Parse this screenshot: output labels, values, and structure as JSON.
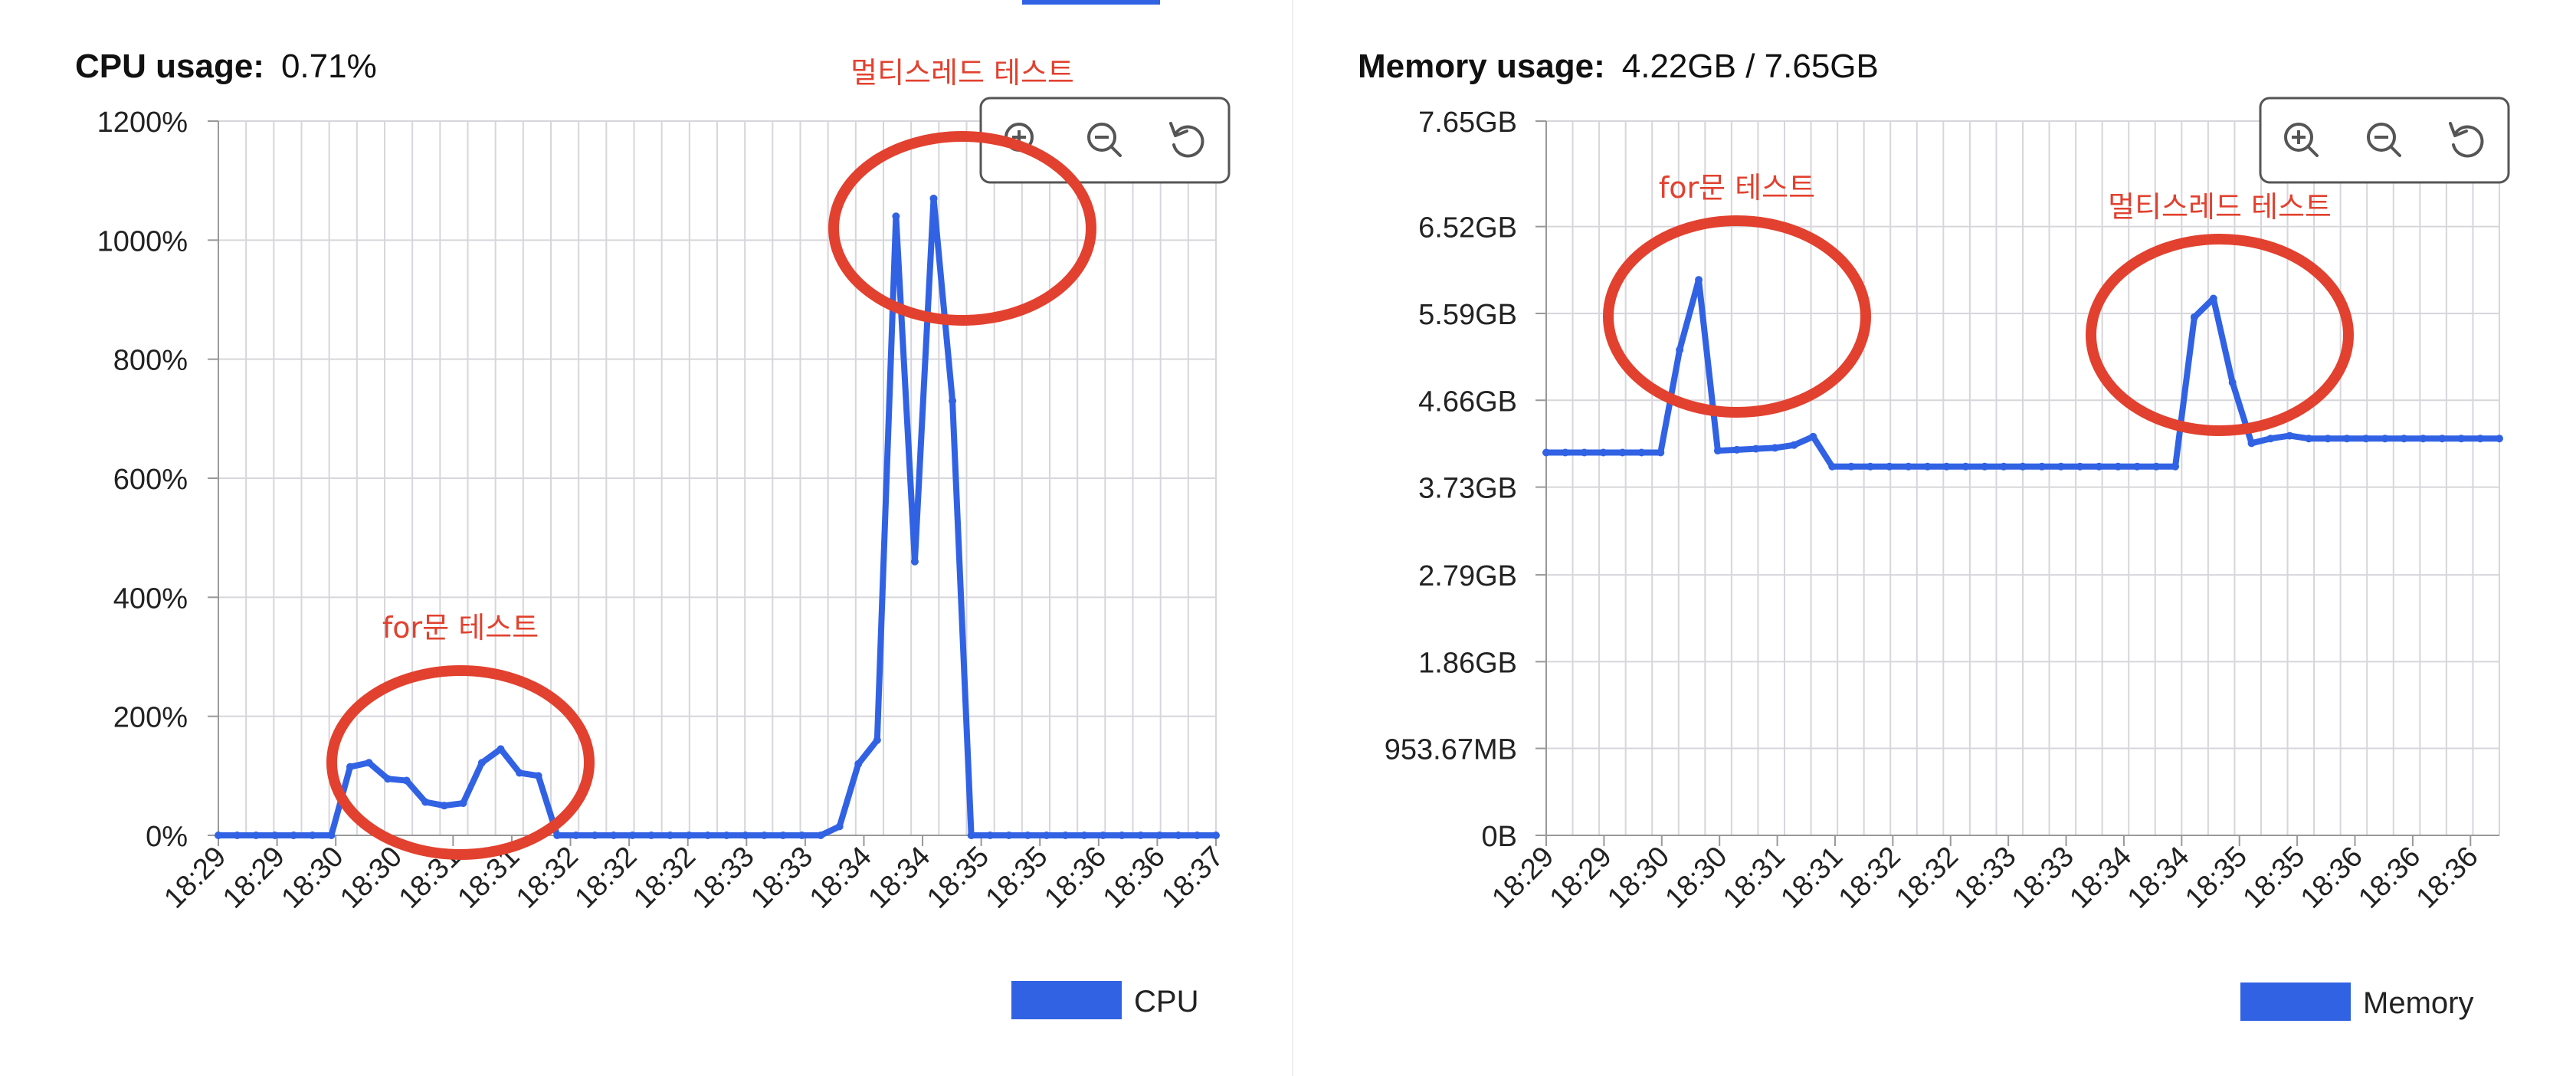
{
  "panels": [
    {
      "title_label": "CPU usage:",
      "title_value": "0.71%",
      "toolbar": [
        "zoom-in-icon",
        "zoom-out-icon",
        "reset-icon"
      ],
      "legend_label": "CPU",
      "annotations": [
        "for문 테스트",
        "멀티스레드 테스트"
      ]
    },
    {
      "title_label": "Memory usage:",
      "title_value": "4.22GB / 7.65GB",
      "toolbar": [
        "zoom-in-icon",
        "zoom-out-icon",
        "reset-icon"
      ],
      "legend_label": "Memory",
      "annotations": [
        "for문 테스트",
        "멀티스레드 테스트"
      ]
    }
  ],
  "colors": {
    "series": "#3262e4",
    "annotation": "#e2412f",
    "grid": "#d6d6db"
  },
  "chart_data": [
    {
      "type": "line",
      "series": [
        {
          "name": "CPU",
          "values": [
            0,
            0,
            0,
            0,
            0,
            0,
            0,
            115,
            122,
            95,
            92,
            56,
            50,
            54,
            122,
            145,
            105,
            100,
            0,
            0,
            0,
            0,
            0,
            0,
            0,
            0,
            0,
            0,
            0,
            0,
            0,
            0,
            0,
            15,
            120,
            160,
            1040,
            460,
            1070,
            730,
            0,
            0,
            0,
            0,
            0,
            0,
            0,
            0,
            0,
            0,
            0,
            0,
            0,
            0
          ]
        }
      ],
      "ylim": [
        0,
        1200
      ],
      "y_ticks": [
        "0%",
        "200%",
        "400%",
        "600%",
        "800%",
        "1000%",
        "1200%"
      ],
      "x_ticks": [
        "18:29",
        "18:29",
        "18:30",
        "18:30",
        "18:31",
        "18:31",
        "18:32",
        "18:32",
        "18:32",
        "18:33",
        "18:33",
        "18:34",
        "18:34",
        "18:35",
        "18:35",
        "18:36",
        "18:36",
        "18:37"
      ],
      "grid": true,
      "legend": "bottom-right"
    },
    {
      "type": "line",
      "series": [
        {
          "name": "Memory",
          "values_gb": [
            4.1,
            4.1,
            4.1,
            4.1,
            4.1,
            4.1,
            4.1,
            5.2,
            5.95,
            4.12,
            4.13,
            4.14,
            4.15,
            4.18,
            4.27,
            3.95,
            3.95,
            3.95,
            3.95,
            3.95,
            3.95,
            3.95,
            3.95,
            3.95,
            3.95,
            3.95,
            3.95,
            3.95,
            3.95,
            3.95,
            3.95,
            3.95,
            3.95,
            3.95,
            5.55,
            5.75,
            4.85,
            4.2,
            4.25,
            4.28,
            4.25,
            4.25,
            4.25,
            4.25,
            4.25,
            4.25,
            4.25,
            4.25,
            4.25,
            4.25,
            4.25
          ]
        }
      ],
      "ylim": [
        0,
        7.65
      ],
      "y_ticks": [
        "0B",
        "953.67MB",
        "1.86GB",
        "2.79GB",
        "3.73GB",
        "4.66GB",
        "5.59GB",
        "6.52GB",
        "7.65GB"
      ],
      "x_ticks": [
        "18:29",
        "18:29",
        "18:30",
        "18:30",
        "18:31",
        "18:31",
        "18:32",
        "18:32",
        "18:33",
        "18:33",
        "18:34",
        "18:34",
        "18:35",
        "18:35",
        "18:36",
        "18:36",
        "18:36"
      ],
      "grid": true,
      "legend": "bottom-right"
    }
  ]
}
